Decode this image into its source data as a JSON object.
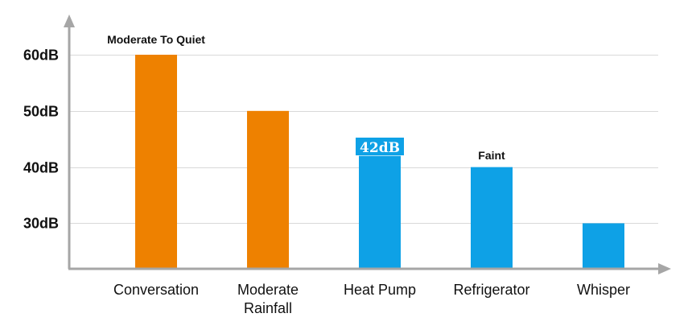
{
  "chart_data": {
    "type": "bar",
    "categories": [
      "Conversation",
      "Moderate Rainfall",
      "Heat Pump",
      "Refrigerator",
      "Whisper"
    ],
    "category_labels": [
      [
        "Conversation"
      ],
      [
        "Moderate",
        "Rainfall"
      ],
      [
        "Heat Pump"
      ],
      [
        "Refrigerator"
      ],
      [
        "Whisper"
      ]
    ],
    "values": [
      60,
      50,
      42,
      40,
      30
    ],
    "bar_colors": [
      "#EE8100",
      "#EE8100",
      "#0EA1E6",
      "#0EA1E6",
      "#0EA1E6"
    ],
    "y_ticks": [
      {
        "value": 30,
        "label": "30dB"
      },
      {
        "value": 40,
        "label": "40dB"
      },
      {
        "value": 50,
        "label": "50dB"
      },
      {
        "value": 60,
        "label": "60dB"
      }
    ],
    "annotations": {
      "moderate_to_quiet": "Moderate To Quiet",
      "faint": "Faint",
      "heat_pump_badge": "42dB"
    },
    "ylim": [
      21.9,
      64
    ],
    "grid": true,
    "colors": {
      "axis": "#A6A6A6",
      "grid": "#D9D9D9",
      "badge": "#0EA1E6",
      "orange": "#EE8100",
      "blue": "#0EA1E6"
    }
  }
}
